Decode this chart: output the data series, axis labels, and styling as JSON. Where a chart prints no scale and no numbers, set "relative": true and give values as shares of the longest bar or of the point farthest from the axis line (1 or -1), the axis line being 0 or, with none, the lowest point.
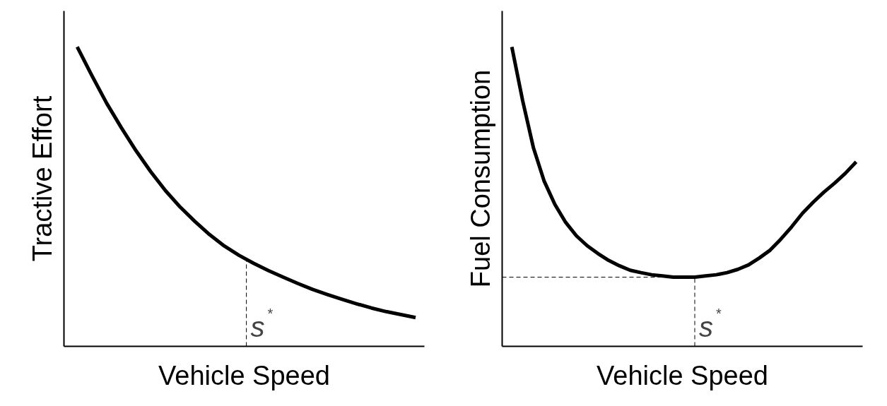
{
  "chart_data": [
    {
      "type": "line",
      "relative": true,
      "xlabel": "Vehicle Speed",
      "ylabel": "Tractive Effort",
      "color": "#000000",
      "categories": [
        null,
        null,
        null,
        null,
        null,
        null,
        null,
        null,
        null,
        null,
        null,
        null,
        null,
        null,
        null,
        null,
        null,
        null,
        null,
        null,
        null,
        null,
        null,
        null
      ],
      "values": [
        1,
        0.904,
        0.812,
        0.73,
        0.653,
        0.583,
        0.52,
        0.465,
        0.417,
        0.373,
        0.335,
        0.304,
        0.277,
        0.253,
        0.231,
        0.21,
        0.19,
        0.173,
        0.157,
        0.142,
        0.128,
        0.116,
        0.106,
        0.096
      ],
      "annotations": [
        "s$^{*}$"
      ]
    },
    {
      "type": "line",
      "relative": true,
      "xlabel": "Vehicle Speed",
      "ylabel": "Fuel Consumption",
      "color": "#000000",
      "categories": [
        null,
        null,
        null,
        null,
        null,
        null,
        null,
        null,
        null,
        null,
        null,
        null,
        null,
        null,
        null,
        null,
        null,
        null,
        null,
        null,
        null,
        null,
        null,
        null,
        null,
        null,
        null,
        null,
        null,
        null,
        null,
        null,
        null
      ],
      "values": [
        1,
        0.821,
        0.664,
        0.552,
        0.474,
        0.414,
        0.369,
        0.336,
        0.31,
        0.287,
        0.269,
        0.254,
        0.246,
        0.239,
        0.235,
        0.231,
        0.231,
        0.231,
        0.235,
        0.239,
        0.246,
        0.257,
        0.272,
        0.295,
        0.321,
        0.358,
        0.399,
        0.444,
        0.481,
        0.515,
        0.545,
        0.578,
        0.616
      ],
      "annotations": [
        {
          "text": "s$^{*}$",
          "y": 0.231
        }
      ],
      "ref_lines": [
        {
          "axis": "y",
          "value": 0.231,
          "line_style": "dashed"
        }
      ]
    }
  ]
}
